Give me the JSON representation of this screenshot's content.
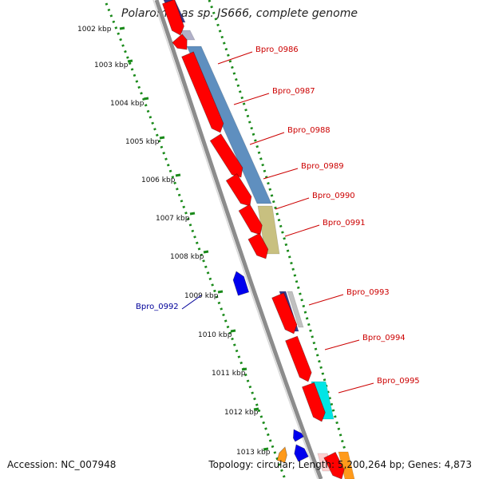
{
  "title": "Polaromonas sp. JS666, complete genome",
  "accession_label": "Accession: NC_007948",
  "summary_label": "Topology: circular; Length: 5,200,264 bp; Genes: 4,873",
  "colors": {
    "backbone": "#8c8c8c",
    "scale_dots": "#1a8a1a",
    "gene_red": "#ff0000",
    "gene_blue": "#0000ee",
    "gene_label_red": "#cc0000",
    "gene_label_blue": "#000099",
    "band_blue": "#5f8fbf",
    "band_khaki": "#c8c080",
    "band_cyan": "#00e5e5",
    "band_navy": "#3a3a8a",
    "band_orange": "#ff9a1a"
  },
  "scale_labels": [
    {
      "text": "1002 kbp",
      "kbp": 1002
    },
    {
      "text": "1003 kbp",
      "kbp": 1003
    },
    {
      "text": "1004 kbp",
      "kbp": 1004
    },
    {
      "text": "1005 kbp",
      "kbp": 1005
    },
    {
      "text": "1006 kbp",
      "kbp": 1006
    },
    {
      "text": "1007 kbp",
      "kbp": 1007
    },
    {
      "text": "1008 kbp",
      "kbp": 1008
    },
    {
      "text": "1009 kbp",
      "kbp": 1009
    },
    {
      "text": "1010 kbp",
      "kbp": 1010
    },
    {
      "text": "1011 kbp",
      "kbp": 1011
    },
    {
      "text": "1012 kbp",
      "kbp": 1012
    },
    {
      "text": "1013 kbp",
      "kbp": 1013
    }
  ],
  "gene_labels": [
    {
      "text": "Bpro_0986",
      "strand": "forward"
    },
    {
      "text": "Bpro_0987",
      "strand": "forward"
    },
    {
      "text": "Bpro_0988",
      "strand": "forward"
    },
    {
      "text": "Bpro_0989",
      "strand": "forward"
    },
    {
      "text": "Bpro_0990",
      "strand": "forward"
    },
    {
      "text": "Bpro_0991",
      "strand": "forward"
    },
    {
      "text": "Bpro_0992",
      "strand": "reverse"
    },
    {
      "text": "Bpro_0993",
      "strand": "forward"
    },
    {
      "text": "Bpro_0994",
      "strand": "forward"
    },
    {
      "text": "Bpro_0995",
      "strand": "forward"
    }
  ]
}
